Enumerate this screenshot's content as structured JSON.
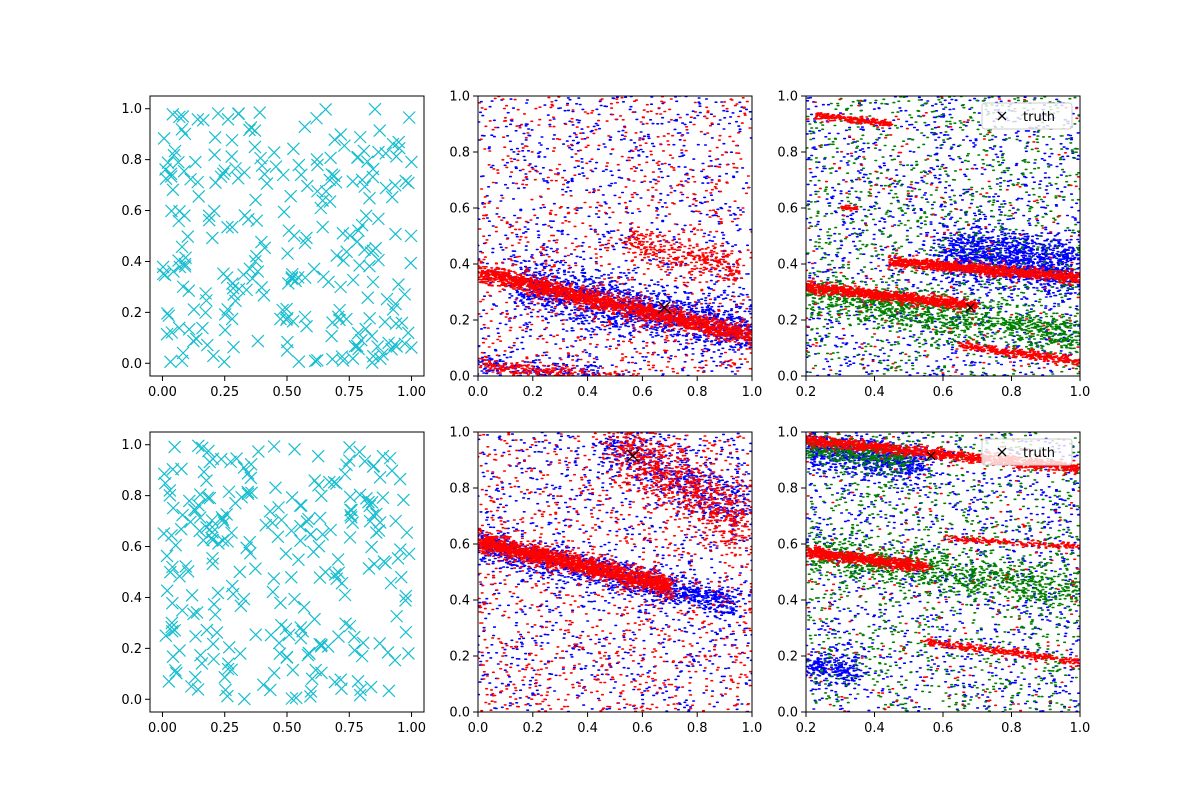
{
  "chart_data": [
    {
      "panel": "top-left",
      "type": "scatter",
      "marker": "x",
      "title": "",
      "xlabel": "",
      "ylabel": "",
      "xlim": [
        -0.05,
        1.05
      ],
      "ylim": [
        -0.05,
        1.05
      ],
      "xticks": [
        "0.00",
        "0.25",
        "0.50",
        "0.75",
        "1.00"
      ],
      "yticks": [
        "0.0",
        "0.2",
        "0.4",
        "0.6",
        "0.8",
        "1.0"
      ],
      "series": [
        {
          "name": "samples",
          "color": "#17becf",
          "random_uniform_count": 260,
          "seed": 11
        }
      ],
      "legend": null
    },
    {
      "panel": "top-middle",
      "type": "scatter",
      "marker": "dot",
      "title": "",
      "xlabel": "",
      "ylabel": "",
      "xlim": [
        0,
        1
      ],
      "ylim": [
        0,
        1
      ],
      "xticks": [
        "0.0",
        "0.2",
        "0.4",
        "0.6",
        "0.8",
        "1.0"
      ],
      "yticks": [
        "0.0",
        "0.2",
        "0.4",
        "0.6",
        "0.8",
        "1.0"
      ],
      "series": [
        {
          "name": "blue",
          "color": "#0000ff",
          "noise": 1000,
          "bands": [
            {
              "x": [
                0.15,
                1.0
              ],
              "y": [
                0.32,
                0.16
              ],
              "spread": 0.05,
              "count": 1500
            },
            {
              "x": [
                0.0,
                0.45
              ],
              "y": [
                0.04,
                0.0
              ],
              "spread": 0.02,
              "count": 200
            }
          ]
        },
        {
          "name": "red",
          "color": "#ff0000",
          "noise": 900,
          "bands": [
            {
              "x": [
                0.0,
                1.0
              ],
              "y": [
                0.37,
                0.14
              ],
              "spread": 0.018,
              "count": 1800
            },
            {
              "x": [
                0.55,
                0.95
              ],
              "y": [
                0.48,
                0.38
              ],
              "spread": 0.03,
              "count": 300
            },
            {
              "x": [
                0.0,
                0.6
              ],
              "y": [
                0.04,
                -0.02
              ],
              "spread": 0.012,
              "count": 300
            }
          ]
        }
      ],
      "truth": {
        "x": 0.68,
        "y": 0.245,
        "color": "#000000"
      },
      "legend": null
    },
    {
      "panel": "top-right",
      "type": "scatter",
      "marker": "dot",
      "title": "",
      "xlabel": "",
      "ylabel": "",
      "xlim": [
        0.2,
        1.0
      ],
      "ylim": [
        0,
        1
      ],
      "xticks": [
        "0.2",
        "0.4",
        "0.6",
        "0.8",
        "1.0"
      ],
      "yticks": [
        "0.0",
        "0.2",
        "0.4",
        "0.6",
        "0.8",
        "1.0"
      ],
      "series": [
        {
          "name": "blue",
          "color": "#0000ff",
          "noise": 1300,
          "bands": [
            {
              "x": [
                0.6,
                1.0
              ],
              "y": [
                0.45,
                0.38
              ],
              "spread": 0.05,
              "count": 1300
            }
          ]
        },
        {
          "name": "green",
          "color": "#008000",
          "noise": 1100,
          "bands": [
            {
              "x": [
                0.2,
                1.0
              ],
              "y": [
                0.3,
                0.14
              ],
              "spread": 0.035,
              "count": 1100
            }
          ]
        },
        {
          "name": "red",
          "color": "#ff0000",
          "noise": 250,
          "bands": [
            {
              "x": [
                0.2,
                0.7
              ],
              "y": [
                0.32,
                0.25
              ],
              "spread": 0.01,
              "count": 900
            },
            {
              "x": [
                0.45,
                1.0
              ],
              "y": [
                0.41,
                0.35
              ],
              "spread": 0.01,
              "count": 1000
            },
            {
              "x": [
                0.65,
                1.0
              ],
              "y": [
                0.11,
                0.05
              ],
              "spread": 0.008,
              "count": 350
            },
            {
              "x": [
                0.23,
                0.45
              ],
              "y": [
                0.93,
                0.9
              ],
              "spread": 0.006,
              "count": 220
            },
            {
              "x": [
                0.3,
                0.35
              ],
              "y": [
                0.6,
                0.6
              ],
              "spread": 0.004,
              "count": 40
            }
          ]
        }
      ],
      "truth": {
        "x": 0.68,
        "y": 0.245,
        "color": "#000000"
      },
      "legend": {
        "label": "truth",
        "marker": "×",
        "placement": "top-right"
      }
    },
    {
      "panel": "bottom-left",
      "type": "scatter",
      "marker": "x",
      "title": "",
      "xlabel": "",
      "ylabel": "",
      "xlim": [
        -0.05,
        1.05
      ],
      "ylim": [
        -0.05,
        1.05
      ],
      "xticks": [
        "0.00",
        "0.25",
        "0.50",
        "0.75",
        "1.00"
      ],
      "yticks": [
        "0.0",
        "0.2",
        "0.4",
        "0.6",
        "0.8",
        "1.0"
      ],
      "series": [
        {
          "name": "samples",
          "color": "#17becf",
          "random_uniform_count": 260,
          "seed": 23
        }
      ],
      "legend": null
    },
    {
      "panel": "bottom-middle",
      "type": "scatter",
      "marker": "dot",
      "title": "",
      "xlabel": "",
      "ylabel": "",
      "xlim": [
        0,
        1
      ],
      "ylim": [
        0,
        1
      ],
      "xticks": [
        "0.0",
        "0.2",
        "0.4",
        "0.6",
        "0.8",
        "1.0"
      ],
      "yticks": [
        "0.0",
        "0.2",
        "0.4",
        "0.6",
        "0.8",
        "1.0"
      ],
      "series": [
        {
          "name": "blue",
          "color": "#0000ff",
          "noise": 1100,
          "bands": [
            {
              "x": [
                0.0,
                0.95
              ],
              "y": [
                0.6,
                0.38
              ],
              "spread": 0.03,
              "count": 1200
            },
            {
              "x": [
                0.45,
                1.0
              ],
              "y": [
                0.98,
                0.7
              ],
              "spread": 0.05,
              "count": 500
            }
          ]
        },
        {
          "name": "red",
          "color": "#ff0000",
          "noise": 1100,
          "bands": [
            {
              "x": [
                0.0,
                0.7
              ],
              "y": [
                0.61,
                0.45
              ],
              "spread": 0.018,
              "count": 1700
            },
            {
              "x": [
                0.5,
                1.0
              ],
              "y": [
                0.97,
                0.65
              ],
              "spread": 0.06,
              "count": 800
            }
          ]
        }
      ],
      "truth": {
        "x": 0.565,
        "y": 0.915,
        "color": "#000000"
      },
      "legend": null
    },
    {
      "panel": "bottom-right",
      "type": "scatter",
      "marker": "dot",
      "title": "",
      "xlabel": "",
      "ylabel": "",
      "xlim": [
        0.2,
        1.0
      ],
      "ylim": [
        0,
        1
      ],
      "xticks": [
        "0.2",
        "0.4",
        "0.6",
        "0.8",
        "1.0"
      ],
      "yticks": [
        "0.0",
        "0.2",
        "0.4",
        "0.6",
        "0.8",
        "1.0"
      ],
      "series": [
        {
          "name": "blue",
          "color": "#0000ff",
          "noise": 1200,
          "bands": [
            {
              "x": [
                0.2,
                0.55
              ],
              "y": [
                0.94,
                0.88
              ],
              "spread": 0.035,
              "count": 700
            },
            {
              "x": [
                0.2,
                0.35
              ],
              "y": [
                0.17,
                0.14
              ],
              "spread": 0.03,
              "count": 250
            }
          ]
        },
        {
          "name": "green",
          "color": "#008000",
          "noise": 1100,
          "bands": [
            {
              "x": [
                0.2,
                1.0
              ],
              "y": [
                0.57,
                0.43
              ],
              "spread": 0.04,
              "count": 900
            },
            {
              "x": [
                0.2,
                0.5
              ],
              "y": [
                0.95,
                0.9
              ],
              "spread": 0.025,
              "count": 350
            }
          ]
        },
        {
          "name": "red",
          "color": "#ff0000",
          "noise": 250,
          "bands": [
            {
              "x": [
                0.2,
                1.0
              ],
              "y": [
                0.97,
                0.87
              ],
              "spread": 0.01,
              "count": 1200
            },
            {
              "x": [
                0.2,
                0.55
              ],
              "y": [
                0.57,
                0.52
              ],
              "spread": 0.01,
              "count": 700
            },
            {
              "x": [
                0.6,
                1.0
              ],
              "y": [
                0.62,
                0.59
              ],
              "spread": 0.006,
              "count": 180
            },
            {
              "x": [
                0.55,
                1.0
              ],
              "y": [
                0.25,
                0.18
              ],
              "spread": 0.007,
              "count": 300
            }
          ]
        }
      ],
      "truth": {
        "x": 0.565,
        "y": 0.915,
        "color": "#000000"
      },
      "legend": {
        "label": "truth",
        "marker": "×",
        "placement": "top-right"
      }
    }
  ]
}
